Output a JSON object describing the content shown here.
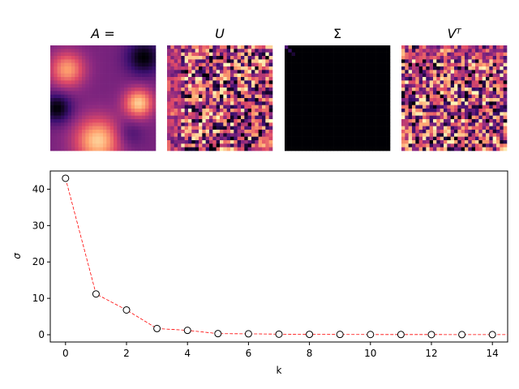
{
  "panels": [
    {
      "title": "A =",
      "kind": "smooth-field"
    },
    {
      "title": "U",
      "kind": "orthogonal-noise"
    },
    {
      "title": "Σ",
      "kind": "diagonal"
    },
    {
      "title": "Vᵀ",
      "kind": "orthogonal-noise-rows"
    }
  ],
  "colormap": "magma",
  "colormap_stops": [
    "#000004",
    "#3b0f70",
    "#8c2981",
    "#de4968",
    "#fe9f6d",
    "#fcfdbf"
  ],
  "chart_data": {
    "type": "scatter",
    "title": "",
    "xlabel": "k",
    "ylabel": "σ",
    "xlim": [
      -0.5,
      14.5
    ],
    "ylim": [
      -2,
      45
    ],
    "xticks": [
      0,
      2,
      4,
      6,
      8,
      10,
      12,
      14
    ],
    "yticks": [
      0,
      10,
      20,
      30,
      40
    ],
    "grid": false,
    "line_color": "#ff0000",
    "line_style": "dashed",
    "marker": "open-circle",
    "x": [
      0,
      1,
      2,
      3,
      4,
      5,
      6,
      7,
      8,
      9,
      10,
      11,
      12,
      13,
      14
    ],
    "values": [
      43.0,
      11.2,
      6.8,
      1.7,
      1.2,
      0.3,
      0.25,
      0.15,
      0.1,
      0.08,
      0.06,
      0.05,
      0.04,
      0.03,
      0.02
    ]
  }
}
